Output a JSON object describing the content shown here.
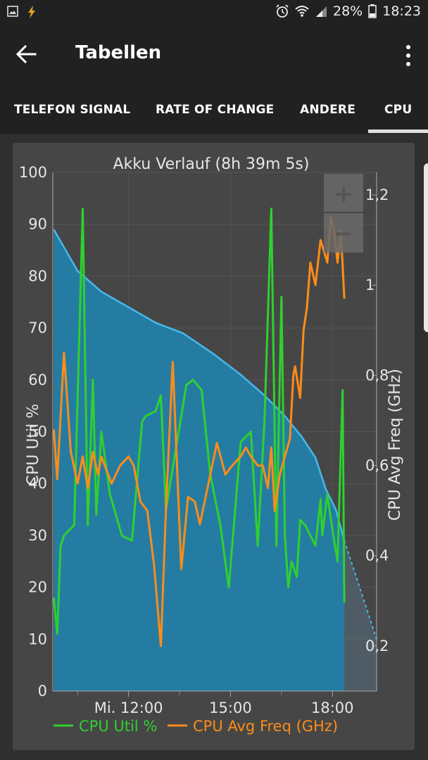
{
  "status_bar": {
    "battery": "28%",
    "time": "18:23"
  },
  "app_bar": {
    "title": "Tabellen"
  },
  "tabs": [
    {
      "label": "TELEFON SIGNAL",
      "active": false
    },
    {
      "label": "RATE OF CHANGE",
      "active": false
    },
    {
      "label": "ANDERE",
      "active": false
    },
    {
      "label": "CPU",
      "active": true
    }
  ],
  "chart_data": {
    "type": "line",
    "title": "Akku Verlauf (8h 39m 5s)",
    "ylabel_left": "CPU Util %",
    "ylabel_right": "CPU Avg Freq (GHz)",
    "y_left_ticks": [
      "0",
      "10",
      "20",
      "30",
      "40",
      "50",
      "60",
      "70",
      "80",
      "90",
      "100"
    ],
    "y_right_ticks": [
      "0,2",
      "0,4",
      "0,6",
      "0,8",
      "1",
      "1,2"
    ],
    "x_ticks": [
      "Mi. 12:00",
      "15:00",
      "18:00"
    ],
    "ylim_left": [
      0,
      100
    ],
    "ylim_right": [
      0.1,
      1.25
    ],
    "xlim_hours": [
      9.77,
      19.3
    ],
    "grid": true,
    "legend": "bottom",
    "zoom_in": "+",
    "zoom_out": "−",
    "colors": {
      "cpu_util": "#2fd02f",
      "cpu_freq": "#ff8c1a",
      "battery_line": "#45b8ec",
      "battery_fill": "#1f86b3"
    },
    "series": [
      {
        "name": "CPU Util %",
        "x": [
          9.8,
          9.9,
          10.0,
          10.1,
          10.4,
          10.65,
          10.8,
          10.95,
          11.05,
          11.2,
          11.45,
          11.8,
          12.1,
          12.4,
          12.5,
          12.8,
          12.95,
          13.1,
          13.35,
          13.7,
          13.9,
          14.15,
          14.4,
          14.7,
          14.95,
          15.3,
          15.6,
          15.8,
          16.0,
          16.2,
          16.35,
          16.5,
          16.6,
          16.7,
          16.8,
          16.95,
          17.05,
          17.2,
          17.5,
          17.65,
          17.7,
          17.85,
          18.0,
          18.15,
          18.3,
          18.35
        ],
        "values": [
          18,
          11,
          28,
          30,
          32,
          93,
          32,
          60,
          34,
          50,
          38,
          30,
          29,
          52,
          53,
          54,
          57,
          35,
          45,
          59,
          60,
          58,
          42,
          32,
          20,
          48,
          50,
          28,
          52,
          93,
          28,
          76,
          30,
          20,
          25,
          22,
          33,
          32,
          28,
          37,
          30,
          38,
          31,
          25,
          58,
          17
        ]
      },
      {
        "name": "CPU Avg Freq (GHz)",
        "x": [
          9.8,
          9.9,
          10.1,
          10.3,
          10.5,
          10.65,
          10.8,
          10.95,
          11.1,
          11.2,
          11.5,
          11.75,
          12.0,
          12.15,
          12.35,
          12.55,
          12.75,
          12.95,
          13.1,
          13.3,
          13.55,
          13.75,
          13.95,
          14.1,
          14.35,
          14.6,
          14.85,
          15.05,
          15.3,
          15.45,
          15.6,
          15.8,
          15.95,
          16.1,
          16.2,
          16.3,
          16.45,
          16.6,
          16.75,
          16.85,
          16.9,
          17.05,
          17.15,
          17.25,
          17.35,
          17.5,
          17.65,
          17.85,
          17.95,
          18.05,
          18.15,
          18.25,
          18.35
        ],
        "values": [
          0.68,
          0.57,
          0.85,
          0.63,
          0.56,
          0.62,
          0.55,
          0.63,
          0.58,
          0.62,
          0.56,
          0.6,
          0.62,
          0.6,
          0.52,
          0.5,
          0.38,
          0.2,
          0.5,
          0.83,
          0.37,
          0.53,
          0.52,
          0.47,
          0.56,
          0.65,
          0.58,
          0.6,
          0.62,
          0.64,
          0.62,
          0.6,
          0.6,
          0.55,
          0.64,
          0.5,
          0.58,
          0.62,
          0.66,
          0.8,
          0.82,
          0.75,
          0.9,
          0.95,
          1.05,
          1.0,
          1.1,
          1.05,
          1.15,
          1.12,
          1.05,
          1.12,
          0.97
        ]
      },
      {
        "name": "Akku",
        "x": [
          9.8,
          10.5,
          11.2,
          12.0,
          12.8,
          13.6,
          14.5,
          15.3,
          16.0,
          16.6,
          17.1,
          17.5,
          17.8,
          18.1,
          18.35
        ],
        "values": [
          89,
          81,
          77,
          74,
          71,
          69,
          65,
          61,
          57,
          53,
          49,
          45,
          39,
          35,
          29
        ]
      }
    ]
  }
}
